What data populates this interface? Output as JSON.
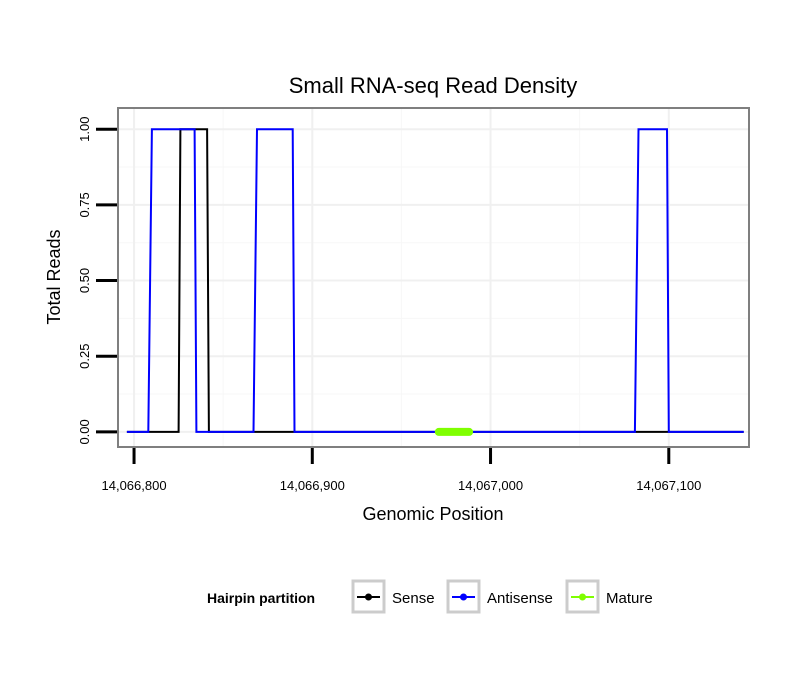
{
  "chart_data": {
    "type": "line",
    "title": "Small RNA-seq Read Density",
    "xlabel": "Genomic Position",
    "ylabel": "Total Reads",
    "xlim": [
      14066791,
      14067145
    ],
    "ylim": [
      -0.05,
      1.07
    ],
    "x_ticks": [
      14066800,
      14066900,
      14067000,
      14067100
    ],
    "x_tick_labels": [
      "14,066,800",
      "14,066,900",
      "14,067,000",
      "14,067,100"
    ],
    "y_ticks": [
      0,
      0.25,
      0.5,
      0.75,
      1.0
    ],
    "y_tick_labels": [
      "0.00",
      "0.25",
      "0.50",
      "0.75",
      "1.00"
    ],
    "grid": true,
    "legend": {
      "title": "Hairpin partition",
      "position": "bottom",
      "entries": [
        "Sense",
        "Antisense",
        "Mature"
      ]
    },
    "series": [
      {
        "name": "Sense",
        "color": "#000000",
        "x": [
          14066796,
          14066825,
          14066826,
          14066841,
          14066842,
          14067142
        ],
        "y": [
          0,
          0,
          1,
          1,
          0,
          0
        ]
      },
      {
        "name": "Antisense",
        "color": "#0000ff",
        "x": [
          14066796,
          14066808,
          14066810,
          14066834,
          14066835,
          14066867,
          14066869,
          14066889,
          14066890,
          14067081,
          14067083,
          14067099,
          14067100,
          14067142
        ],
        "y": [
          0,
          0,
          1,
          1,
          0,
          0,
          1,
          1,
          0,
          0,
          1,
          1,
          0,
          0
        ]
      },
      {
        "name": "Mature",
        "color": "#7fff00",
        "x": [
          14066971,
          14066988
        ],
        "y": [
          0,
          0
        ]
      }
    ]
  }
}
